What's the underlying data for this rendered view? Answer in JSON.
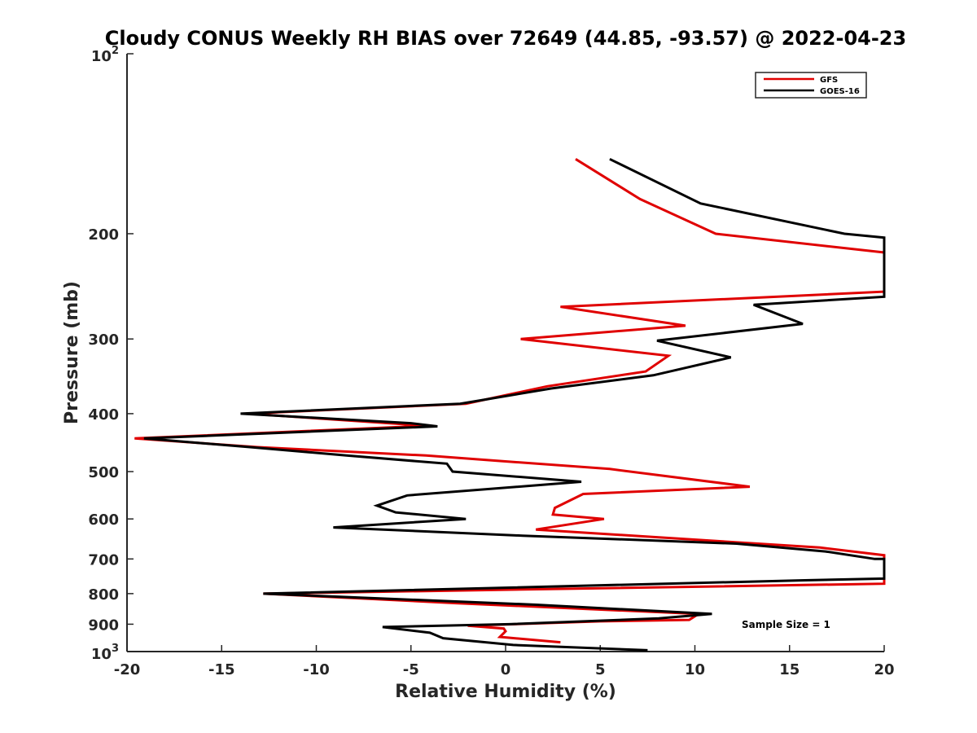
{
  "chart_data": {
    "type": "line",
    "title": "Cloudy CONUS Weekly RH BIAS over 72649 (44.85, -93.57) @ 2022-04-23",
    "xlabel": "Relative Humidity (%)",
    "ylabel": "Pressure (mb)",
    "xlim": [
      -20,
      20
    ],
    "ylim": [
      100,
      1000
    ],
    "y_scale": "log",
    "y_reversed": true,
    "x_ticks": [
      "-20",
      "-15",
      "-10",
      "-5",
      "0",
      "5",
      "10",
      "15",
      "20"
    ],
    "y_ticks": [
      {
        "value": 100,
        "base": "10",
        "exp": "2"
      },
      {
        "value": 200,
        "label": "200"
      },
      {
        "value": 300,
        "label": "300"
      },
      {
        "value": 400,
        "label": "400"
      },
      {
        "value": 500,
        "label": "500"
      },
      {
        "value": 600,
        "label": "600"
      },
      {
        "value": 700,
        "label": "700"
      },
      {
        "value": 800,
        "label": "800"
      },
      {
        "value": 900,
        "label": "900"
      },
      {
        "value": 1000,
        "base": "10",
        "exp": "3"
      }
    ],
    "grid": false,
    "legend_position": "top-right",
    "series": [
      {
        "name": "GFS",
        "color": "#e00000",
        "x": [
          3.7,
          7.1,
          11.1,
          20,
          20,
          2.9,
          9.5,
          0.8,
          8.6,
          7.4,
          2.2,
          -2.1,
          -13.6,
          -3.7,
          -4.8,
          -19.6,
          -13.1,
          -4.2,
          -0.3,
          5.5,
          12.9,
          4.1,
          2.6,
          2.5,
          5.2,
          1.6,
          16.6,
          20,
          20,
          20,
          -12.8,
          -2.6,
          10.2,
          9.7,
          5.0,
          -2.0,
          -0.1,
          0,
          -0.3,
          2.9
        ],
        "y": [
          150,
          175,
          200,
          215,
          250,
          265,
          285,
          300,
          320,
          340,
          360,
          385,
          400,
          420,
          420,
          440,
          455,
          470,
          480,
          495,
          530,
          545,
          575,
          590,
          600,
          625,
          670,
          690,
          760,
          770,
          800,
          830,
          865,
          885,
          890,
          905,
          915,
          925,
          945,
          965
        ]
      },
      {
        "name": "GOES-16",
        "color": "#000000",
        "x": [
          5.5,
          10.3,
          17.9,
          20,
          20,
          13.1,
          15.7,
          8.0,
          11.9,
          7.8,
          2.4,
          -2.4,
          -14.0,
          -5.0,
          -3.6,
          -19.1,
          -13.5,
          -8.4,
          -3.1,
          -2.8,
          4.0,
          -5.2,
          -6.8,
          -5.8,
          -2.1,
          -9.1,
          0.9,
          12.2,
          16.9,
          19.5,
          20,
          20,
          15.8,
          -12.8,
          1.6,
          10.9,
          8.1,
          0.2,
          -6.5,
          -4.0,
          -3.3,
          0.4,
          7.5
        ],
        "y": [
          150,
          178,
          200,
          203,
          255,
          263,
          283,
          302,
          322,
          345,
          363,
          385,
          400,
          415,
          420,
          440,
          455,
          470,
          485,
          500,
          520,
          548,
          570,
          585,
          600,
          620,
          640,
          660,
          680,
          700,
          700,
          755,
          760,
          800,
          835,
          865,
          880,
          900,
          910,
          930,
          950,
          975,
          995
        ]
      }
    ],
    "annotations": [
      "Sample Size = 1"
    ]
  }
}
